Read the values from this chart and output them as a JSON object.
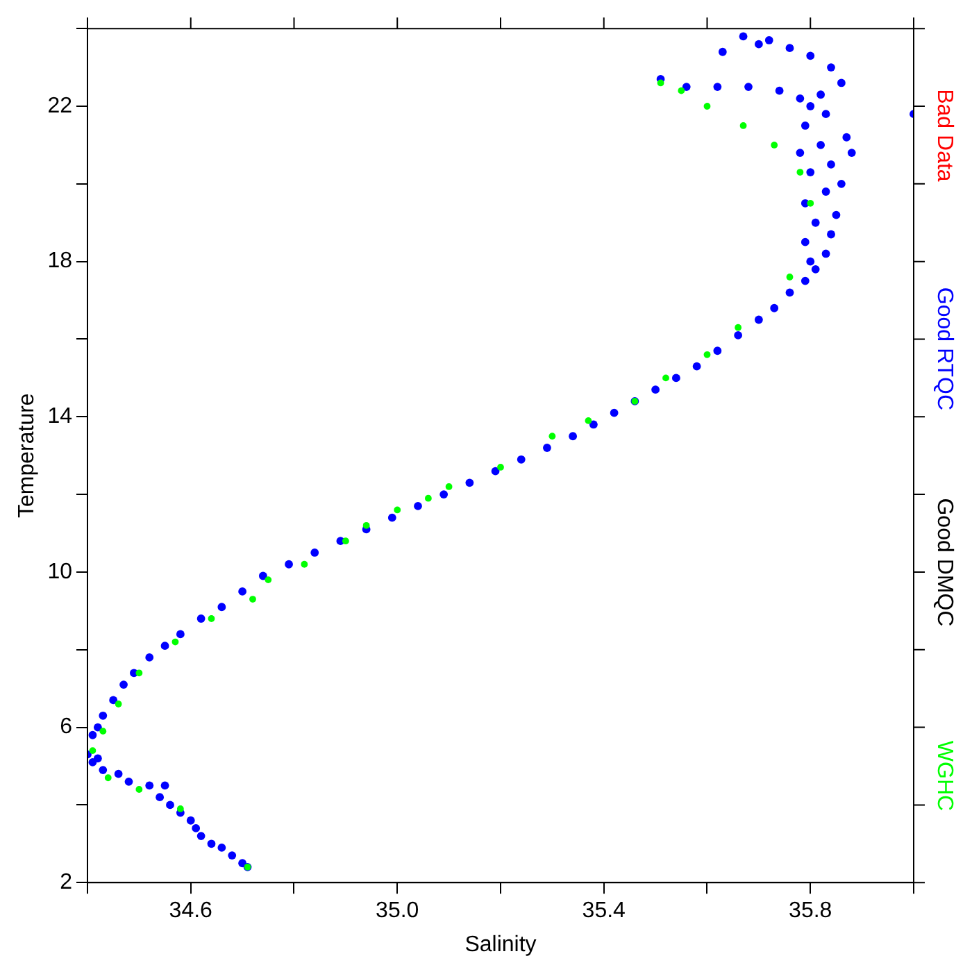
{
  "chart_data": {
    "type": "scatter",
    "xlabel": "Salinity",
    "ylabel": "Temperature",
    "xlim": [
      34.4,
      36.0
    ],
    "ylim": [
      2,
      24
    ],
    "xticks": [
      {
        "value": 34.4,
        "label": null
      },
      34.6,
      {
        "value": 34.8,
        "label": null
      },
      {
        "value": 35.0,
        "label": "35.0"
      },
      {
        "value": 35.2,
        "label": null
      },
      35.4,
      {
        "value": 35.6,
        "label": null
      },
      35.8,
      {
        "value": 36.0,
        "label": null
      }
    ],
    "yticks": [
      2,
      {
        "value": 4,
        "label": null
      },
      6,
      {
        "value": 8,
        "label": null
      },
      10,
      {
        "value": 12,
        "label": null
      },
      14,
      {
        "value": 16,
        "label": null
      },
      18,
      {
        "value": 20,
        "label": null
      },
      22,
      {
        "value": 24,
        "label": null
      }
    ],
    "grid": false,
    "legend": "right",
    "marker": "circle",
    "series": [
      {
        "name": "Bad Data",
        "color": "#ff0000"
      },
      {
        "name": "Good RTQC",
        "color": "#0000ff",
        "x": [
          34.71,
          34.7,
          34.68,
          34.66,
          34.64,
          34.62,
          34.61,
          34.6,
          34.58,
          34.56,
          34.54,
          34.55,
          34.52,
          34.48,
          34.46,
          34.43,
          34.41,
          34.4,
          34.42,
          34.41,
          34.42,
          34.43,
          34.45,
          34.47,
          34.49,
          34.52,
          34.55,
          34.58,
          34.62,
          34.66,
          34.7,
          34.74,
          34.79,
          34.84,
          34.89,
          34.94,
          34.99,
          35.04,
          35.09,
          35.14,
          35.19,
          35.24,
          35.29,
          35.34,
          35.38,
          35.42,
          35.46,
          35.5,
          35.54,
          35.58,
          35.62,
          35.66,
          35.7,
          35.73,
          35.76,
          35.79,
          35.81,
          35.8,
          35.83,
          35.79,
          35.84,
          35.81,
          35.85,
          35.79,
          35.83,
          35.86,
          35.8,
          35.84,
          35.78,
          35.82,
          35.87,
          35.79,
          35.83,
          35.88,
          35.8,
          35.82,
          35.86,
          35.84,
          35.8,
          35.76,
          35.72,
          35.67,
          35.7,
          35.63,
          35.51,
          35.56,
          35.62,
          35.68,
          35.74,
          35.78,
          36.0
        ],
        "values": [
          2.4,
          2.5,
          2.7,
          2.9,
          3.0,
          3.2,
          3.4,
          3.6,
          3.8,
          4.0,
          4.2,
          4.5,
          4.5,
          4.6,
          4.8,
          4.9,
          5.1,
          5.3,
          5.2,
          5.8,
          6.0,
          6.3,
          6.7,
          7.1,
          7.4,
          7.8,
          8.1,
          8.4,
          8.8,
          9.1,
          9.5,
          9.9,
          10.2,
          10.5,
          10.8,
          11.1,
          11.4,
          11.7,
          12.0,
          12.3,
          12.6,
          12.9,
          13.2,
          13.5,
          13.8,
          14.1,
          14.4,
          14.7,
          15.0,
          15.3,
          15.7,
          16.1,
          16.5,
          16.8,
          17.2,
          17.5,
          17.8,
          18.0,
          18.2,
          18.5,
          18.7,
          19.0,
          19.2,
          19.5,
          19.8,
          20.0,
          20.3,
          20.5,
          20.8,
          21.0,
          21.2,
          21.5,
          21.8,
          20.8,
          22.0,
          22.3,
          22.6,
          23.0,
          23.3,
          23.5,
          23.7,
          23.8,
          23.6,
          23.4,
          22.7,
          22.5,
          22.5,
          22.5,
          22.4,
          22.2,
          21.8
        ]
      },
      {
        "name": "Good DMQC",
        "color": "#000000"
      },
      {
        "name": "WGHC",
        "color": "#00ff00",
        "x": [
          34.71,
          34.58,
          34.5,
          34.44,
          34.41,
          34.43,
          34.46,
          34.5,
          34.57,
          34.64,
          34.72,
          34.75,
          34.82,
          34.9,
          34.94,
          35.0,
          35.06,
          35.1,
          35.2,
          35.3,
          35.37,
          35.46,
          35.52,
          35.6,
          35.66,
          35.76,
          35.8,
          35.78,
          35.73,
          35.67,
          35.6,
          35.55,
          35.51
        ],
        "values": [
          2.4,
          3.9,
          4.4,
          4.7,
          5.4,
          5.9,
          6.6,
          7.4,
          8.2,
          8.8,
          9.3,
          9.8,
          10.2,
          10.8,
          11.2,
          11.6,
          11.9,
          12.2,
          12.7,
          13.5,
          13.9,
          14.4,
          15.0,
          15.6,
          16.3,
          17.6,
          19.5,
          20.3,
          21.0,
          21.5,
          22.0,
          22.4,
          22.6
        ]
      }
    ]
  }
}
